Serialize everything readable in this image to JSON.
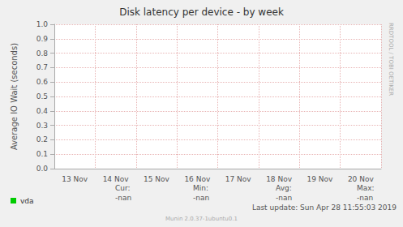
{
  "chart_data": {
    "type": "line",
    "title": "Disk latency per device - by week",
    "y_label": "Average IO Wait (seconds)",
    "categories": [
      "13 Nov",
      "14 Nov",
      "15 Nov",
      "16 Nov",
      "17 Nov",
      "18 Nov",
      "19 Nov",
      "20 Nov"
    ],
    "series": [
      {
        "name": "vda",
        "color": "#00cc00",
        "values": [
          null,
          null,
          null,
          null,
          null,
          null,
          null,
          null
        ]
      }
    ],
    "ylim": [
      0,
      1
    ],
    "yticks": [
      {
        "value": 0,
        "label": "0.0"
      },
      {
        "value": 0.1,
        "label": "0.1"
      },
      {
        "value": 0.2,
        "label": "0.2"
      },
      {
        "value": 0.3,
        "label": "0.3"
      },
      {
        "value": 0.4,
        "label": "0.4"
      },
      {
        "value": 0.5,
        "label": "0.5"
      },
      {
        "value": 0.6,
        "label": "0.6"
      },
      {
        "value": 0.7,
        "label": "0.7"
      },
      {
        "value": 0.8,
        "label": "0.8"
      },
      {
        "value": 0.9,
        "label": "0.9"
      },
      {
        "value": 1,
        "label": "1.0"
      }
    ],
    "grid": true,
    "legend": "bottom-left",
    "stats": [
      {
        "label": "Cur:",
        "value": "-nan"
      },
      {
        "label": "Min:",
        "value": "-nan"
      },
      {
        "label": "Avg:",
        "value": "-nan"
      },
      {
        "label": "Max:",
        "value": "-nan"
      }
    ],
    "last_update": "Last update: Sun Apr 28 11:55:03 2019",
    "footer": "Munin 2.0.37-1ubuntu0.1",
    "side_text": "RRDTOOL / TOBI OETIKER"
  }
}
